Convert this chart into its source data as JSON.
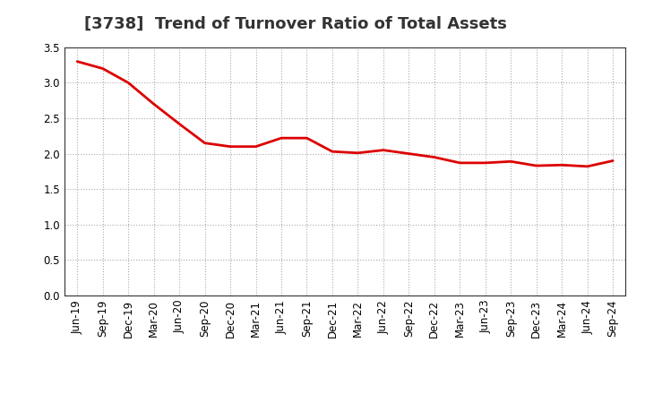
{
  "title": "[3738]  Trend of Turnover Ratio of Total Assets",
  "x_labels": [
    "Jun-19",
    "Sep-19",
    "Dec-19",
    "Mar-20",
    "Jun-20",
    "Sep-20",
    "Dec-20",
    "Mar-21",
    "Jun-21",
    "Sep-21",
    "Dec-21",
    "Mar-22",
    "Jun-22",
    "Sep-22",
    "Dec-22",
    "Mar-23",
    "Jun-23",
    "Sep-23",
    "Dec-23",
    "Mar-24",
    "Jun-24",
    "Sep-24"
  ],
  "y_values": [
    3.3,
    3.2,
    3.0,
    2.7,
    2.42,
    2.15,
    2.1,
    2.1,
    2.22,
    2.22,
    2.03,
    2.01,
    2.05,
    2.0,
    1.95,
    1.87,
    1.87,
    1.89,
    1.83,
    1.84,
    1.82,
    1.9
  ],
  "line_color": "#dd0000",
  "line_width": 2.0,
  "ylim": [
    0.0,
    3.5
  ],
  "yticks": [
    0.0,
    0.5,
    1.0,
    1.5,
    2.0,
    2.5,
    3.0,
    3.5
  ],
  "grid_color": "#aaaaaa",
  "bg_color": "#ffffff",
  "title_fontsize": 13,
  "tick_fontsize": 8.5
}
